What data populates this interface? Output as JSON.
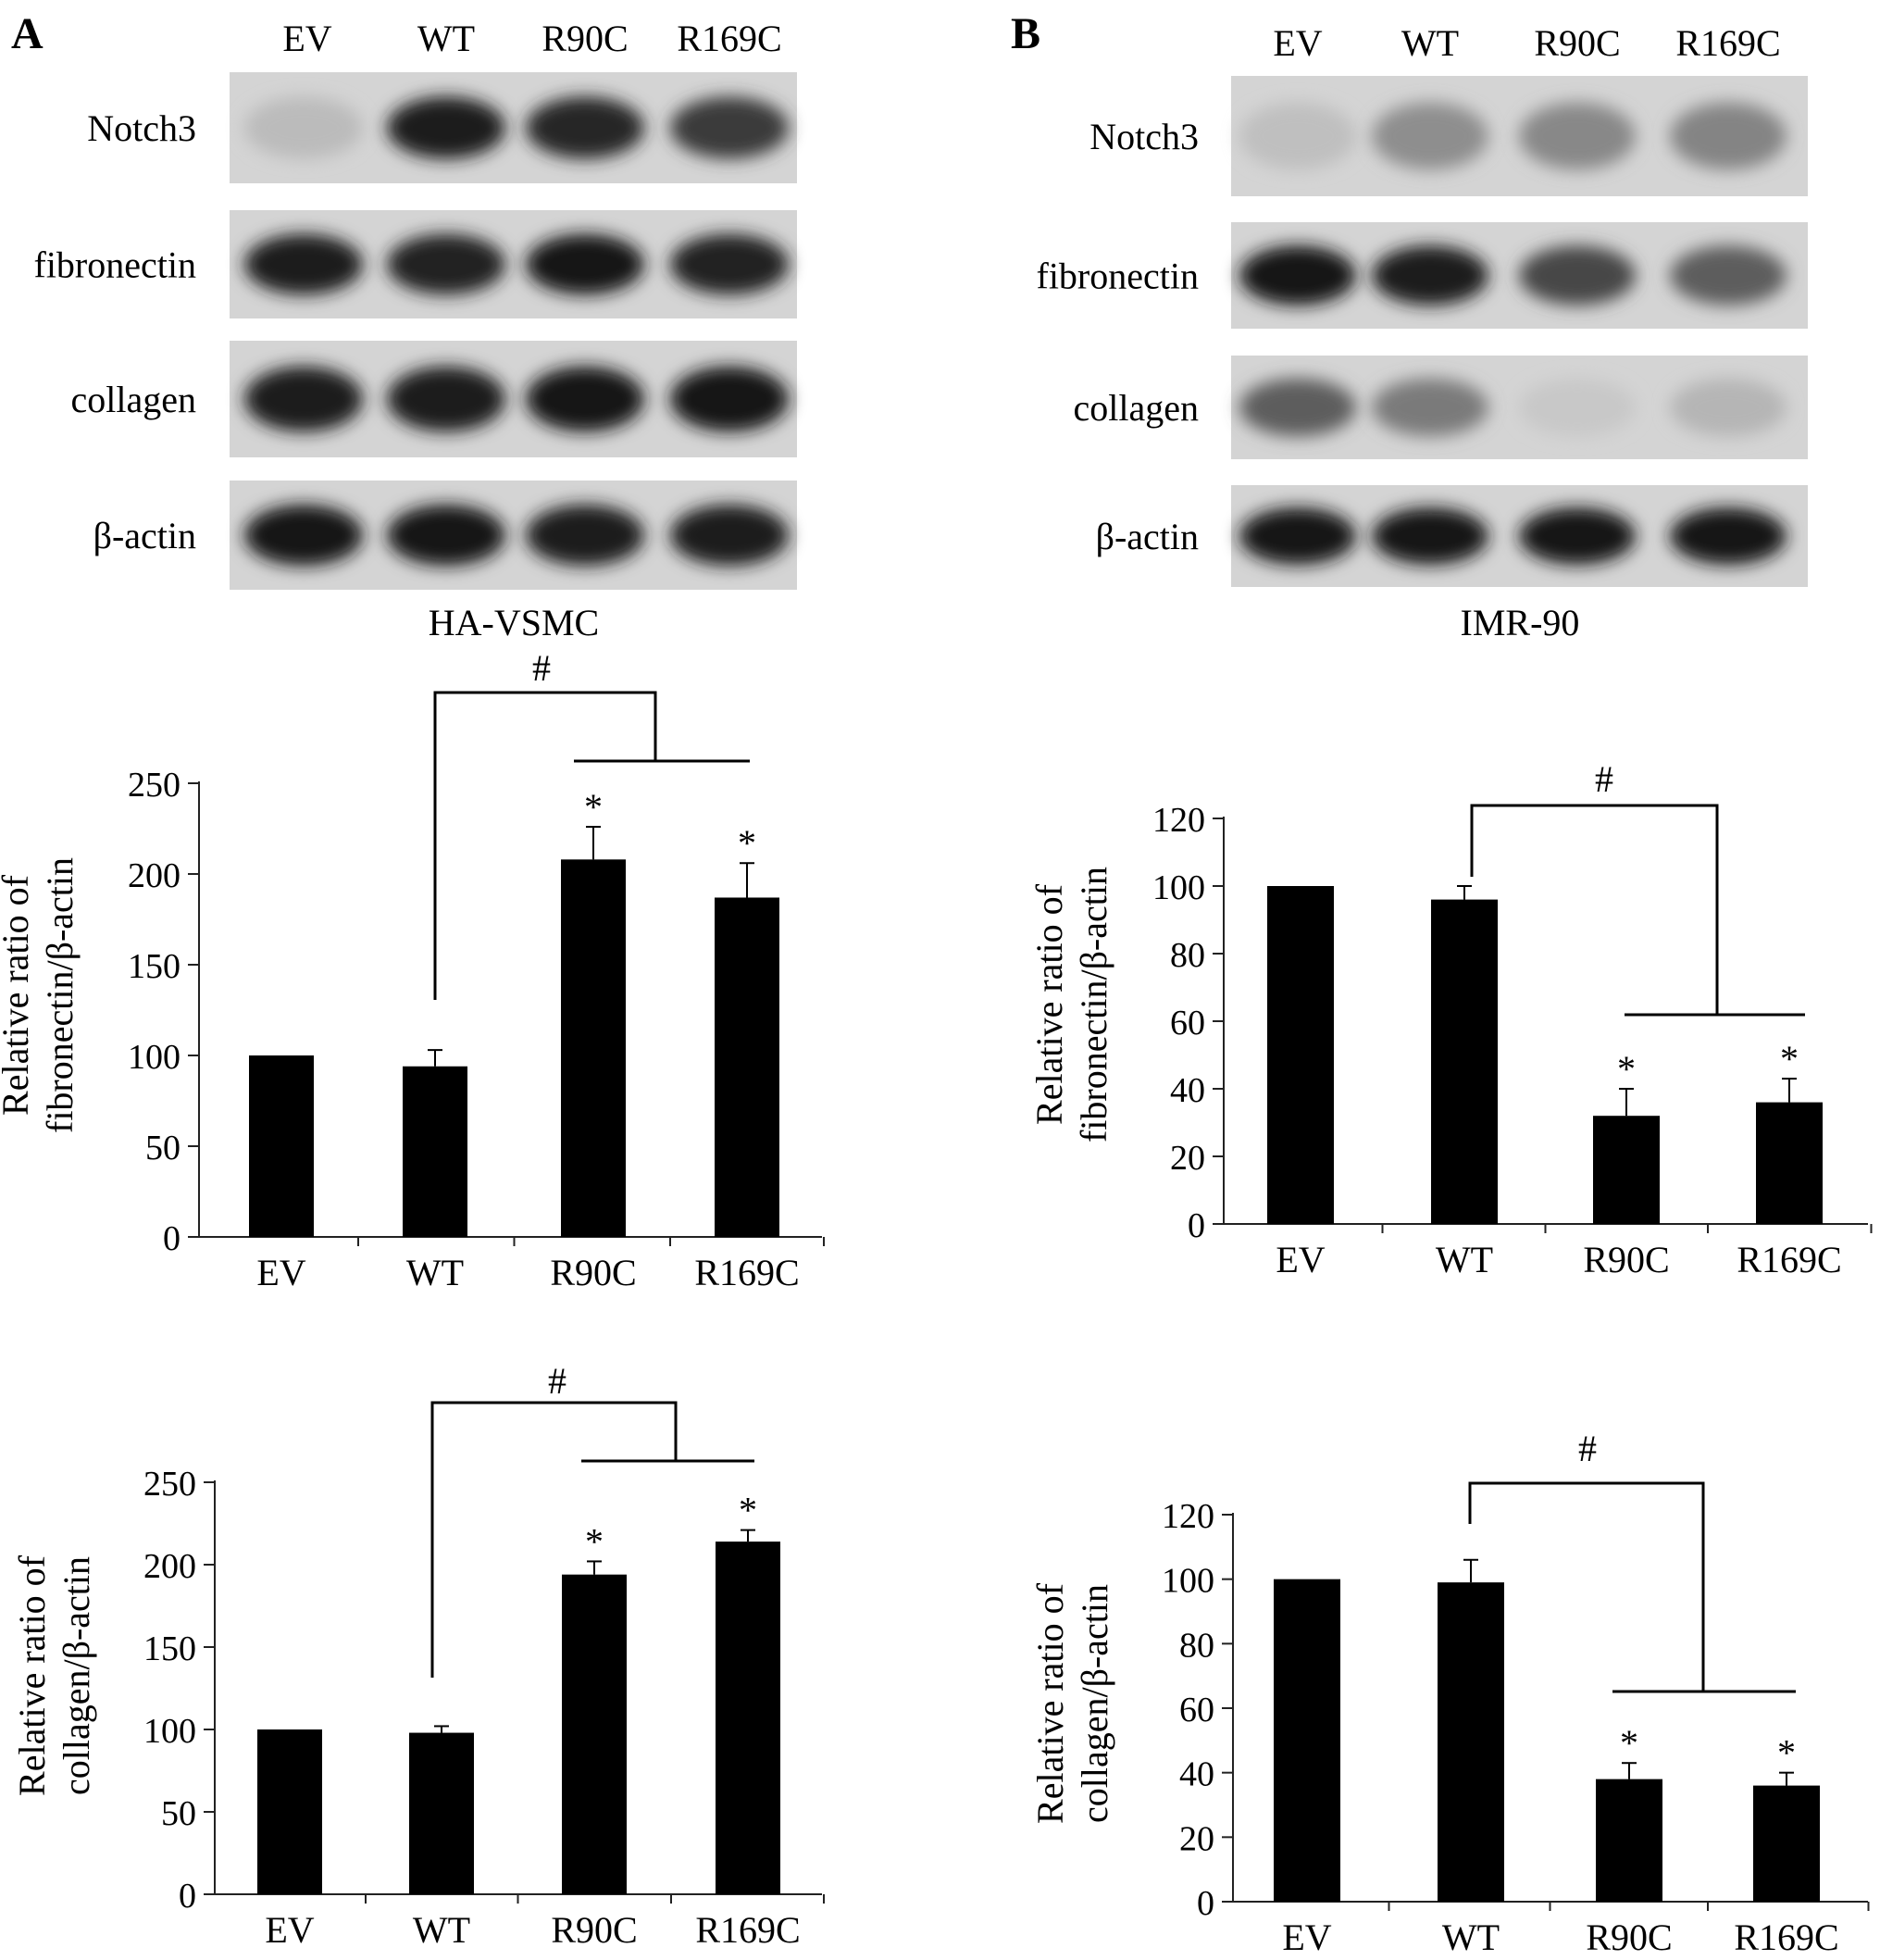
{
  "panels": [
    {
      "letter": "A",
      "cell_line": "HA-VSMC",
      "lanes": [
        "EV",
        "WT",
        "R90C",
        "R169C"
      ],
      "blots": [
        {
          "label": "Notch3",
          "intensity": [
            0.12,
            0.92,
            0.88,
            0.78
          ]
        },
        {
          "label": "fibronectin",
          "intensity": [
            0.92,
            0.9,
            0.95,
            0.9
          ]
        },
        {
          "label": "collagen",
          "intensity": [
            0.92,
            0.92,
            0.96,
            0.98
          ]
        },
        {
          "label": "β-actin",
          "intensity": [
            0.95,
            0.95,
            0.93,
            0.93
          ]
        }
      ]
    },
    {
      "letter": "B",
      "cell_line": "IMR-90",
      "lanes": [
        "EV",
        "WT",
        "R90C",
        "R169C"
      ],
      "blots": [
        {
          "label": "Notch3",
          "intensity": [
            0.1,
            0.35,
            0.38,
            0.4
          ]
        },
        {
          "label": "fibronectin",
          "intensity": [
            0.95,
            0.92,
            0.72,
            0.6
          ]
        },
        {
          "label": "collagen",
          "intensity": [
            0.6,
            0.45,
            0.05,
            0.15
          ]
        },
        {
          "label": "β-actin",
          "intensity": [
            0.98,
            0.98,
            0.96,
            0.96
          ]
        }
      ]
    }
  ],
  "chart_data": [
    {
      "type": "bar",
      "panel": "A",
      "title": "",
      "categories": [
        "EV",
        "WT",
        "R90C",
        "R169C"
      ],
      "values": [
        100,
        94,
        208,
        187
      ],
      "errors": [
        0,
        9,
        18,
        19
      ],
      "stars": [
        "",
        "",
        "*",
        "*"
      ],
      "ylabel_lines": [
        "Relative ratio of",
        "fibronectin/β-actin"
      ],
      "ylim": [
        0,
        250
      ],
      "yticks": [
        0,
        50,
        100,
        150,
        200,
        250
      ],
      "comparison_mark": "#",
      "grid": false,
      "legend": "none"
    },
    {
      "type": "bar",
      "panel": "A",
      "title": "",
      "categories": [
        "EV",
        "WT",
        "R90C",
        "R169C"
      ],
      "values": [
        100,
        98,
        194,
        214
      ],
      "errors": [
        0,
        4,
        8,
        7
      ],
      "stars": [
        "",
        "",
        "*",
        "*"
      ],
      "ylabel_lines": [
        "Relative ratio of",
        "collagen/β-actin"
      ],
      "ylim": [
        0,
        250
      ],
      "yticks": [
        0,
        50,
        100,
        150,
        200,
        250
      ],
      "comparison_mark": "#",
      "grid": false,
      "legend": "none"
    },
    {
      "type": "bar",
      "panel": "B",
      "title": "",
      "categories": [
        "EV",
        "WT",
        "R90C",
        "R169C"
      ],
      "values": [
        100,
        96,
        32,
        36
      ],
      "errors": [
        0,
        4,
        8,
        7
      ],
      "stars": [
        "",
        "",
        "*",
        "*"
      ],
      "ylabel_lines": [
        "Relative ratio of",
        "fibronectin/β-actin"
      ],
      "ylim": [
        0,
        120
      ],
      "yticks": [
        0,
        20,
        40,
        60,
        80,
        100,
        120
      ],
      "comparison_mark": "#",
      "grid": false,
      "legend": "none"
    },
    {
      "type": "bar",
      "panel": "B",
      "title": "",
      "categories": [
        "EV",
        "WT",
        "R90C",
        "R169C"
      ],
      "values": [
        100,
        99,
        38,
        36
      ],
      "errors": [
        0,
        7,
        5,
        4
      ],
      "stars": [
        "",
        "",
        "*",
        "*"
      ],
      "ylabel_lines": [
        "Relative ratio of",
        "collagen/β-actin"
      ],
      "ylim": [
        0,
        120
      ],
      "yticks": [
        0,
        20,
        40,
        60,
        80,
        100,
        120
      ],
      "comparison_mark": "#",
      "grid": false,
      "legend": "none"
    }
  ]
}
